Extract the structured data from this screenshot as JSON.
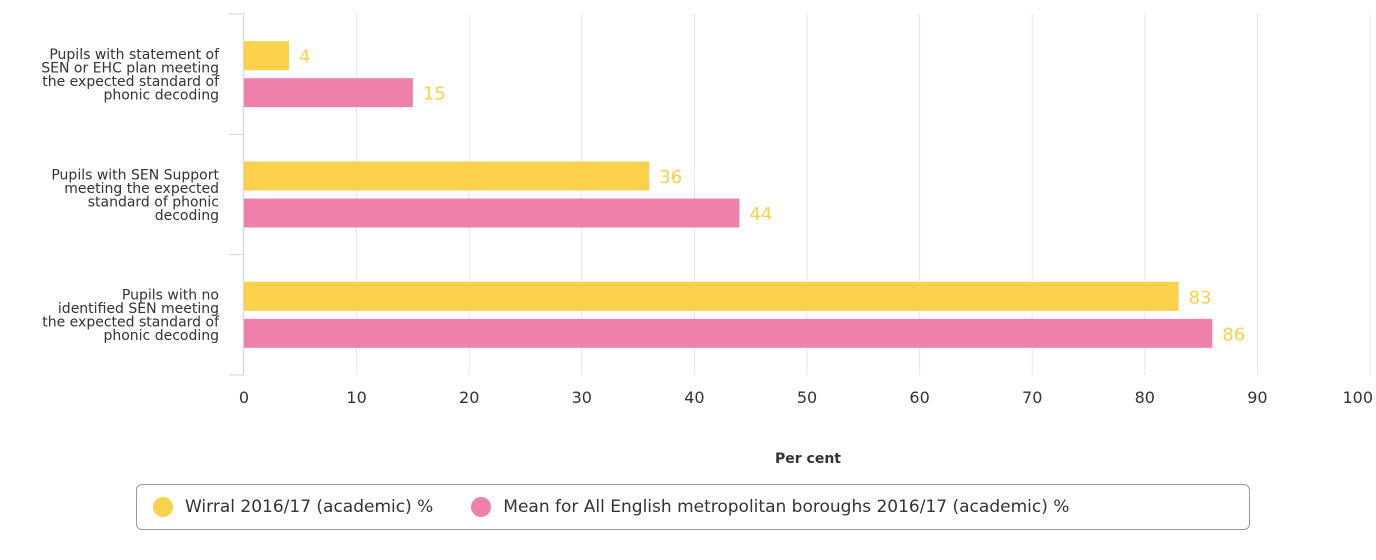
{
  "chart_data": {
    "type": "bar",
    "orientation": "horizontal",
    "categories": [
      "Pupils with statement of SEN or EHC plan meeting the expected standard of phonic decoding",
      "Pupils with SEN Support meeting the expected standard of phonic decoding",
      "Pupils with no identified SEN meeting the expected standard of phonic decoding"
    ],
    "category_lines": [
      [
        "Pupils with statement of",
        "SEN or EHC plan meeting",
        "the expected standard of",
        "phonic decoding"
      ],
      [
        "Pupils with SEN Support",
        "meeting the expected",
        "standard of phonic",
        "decoding"
      ],
      [
        "Pupils with no",
        "identified SEN meeting",
        "the expected standard of",
        "phonic decoding"
      ]
    ],
    "series": [
      {
        "name": "Wirral 2016/17 (academic) %",
        "values": [
          4,
          36,
          83
        ],
        "color": "#f9d14a"
      },
      {
        "name": "Mean for All English metropolitan boroughs 2016/17 (academic) %",
        "values": [
          15,
          44,
          86
        ],
        "color": "#ef82ab"
      }
    ],
    "data_label_color": "#f9d14a",
    "xlabel": "Per cent",
    "xlim": [
      0,
      100
    ],
    "xticks": [
      "0",
      "10",
      "20",
      "30",
      "40",
      "50",
      "60",
      "70",
      "80",
      "90",
      "100"
    ],
    "grid": true,
    "legend_position": "bottom"
  }
}
